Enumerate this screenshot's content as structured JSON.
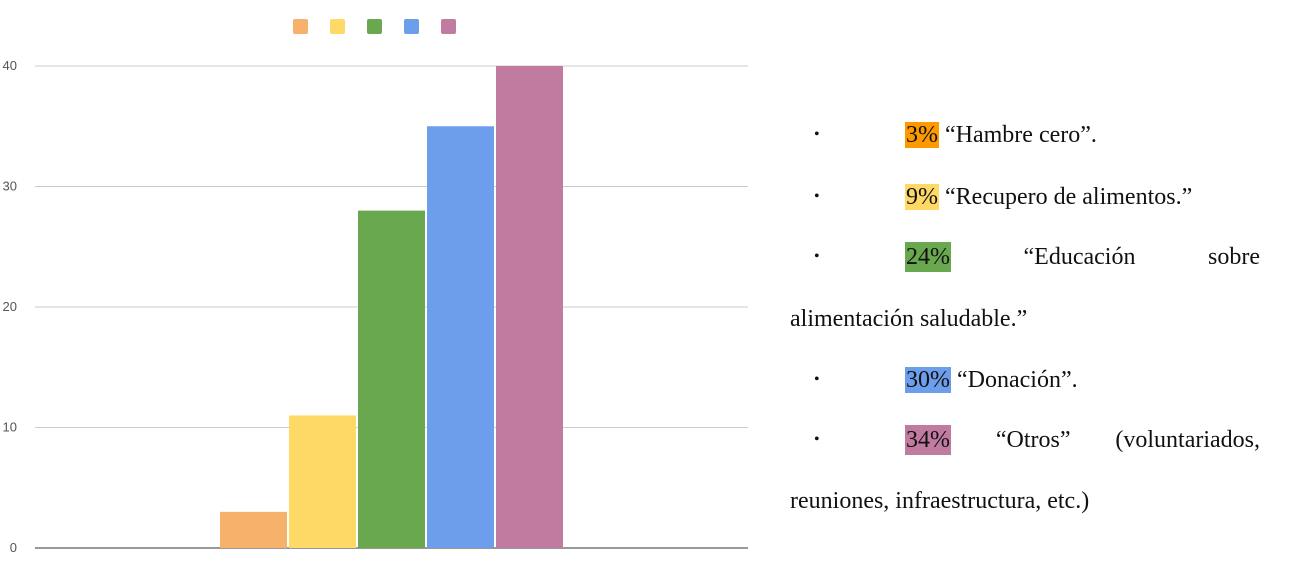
{
  "chart_data": {
    "type": "bar",
    "categories": [
      "",
      "",
      "",
      "",
      ""
    ],
    "values": [
      3,
      11,
      28,
      35,
      40
    ],
    "colors": [
      "#f6b26b",
      "#ffd966",
      "#6aa84f",
      "#6d9eeb",
      "#c27ba0"
    ],
    "y_ticks": [
      "0",
      "10",
      "20",
      "30",
      "40"
    ],
    "ylim": [
      0,
      40
    ],
    "grid": true,
    "legend": "top-center",
    "title": "",
    "xlabel": "",
    "ylabel": ""
  },
  "legend_text": {
    "items": [
      {
        "pct": "3%",
        "text": "“Hambre cero”.",
        "color": "#ff9900"
      },
      {
        "pct": "9%",
        "text": "“Recupero de alimentos.”",
        "color": "#ffd966"
      },
      {
        "pct": "24%",
        "text_a": "“Educación",
        "text_b": "sobre",
        "cont": "alimentación saludable.”",
        "color": "#6aa84f"
      },
      {
        "pct": "30%",
        "text": "“Donación”.",
        "color": "#6d9eeb"
      },
      {
        "pct": "34%",
        "text_a": "“Otros”",
        "text_b": "(voluntariados,",
        "cont": "reuniones, infraestructura, etc.)",
        "color": "#c27ba0"
      }
    ]
  }
}
